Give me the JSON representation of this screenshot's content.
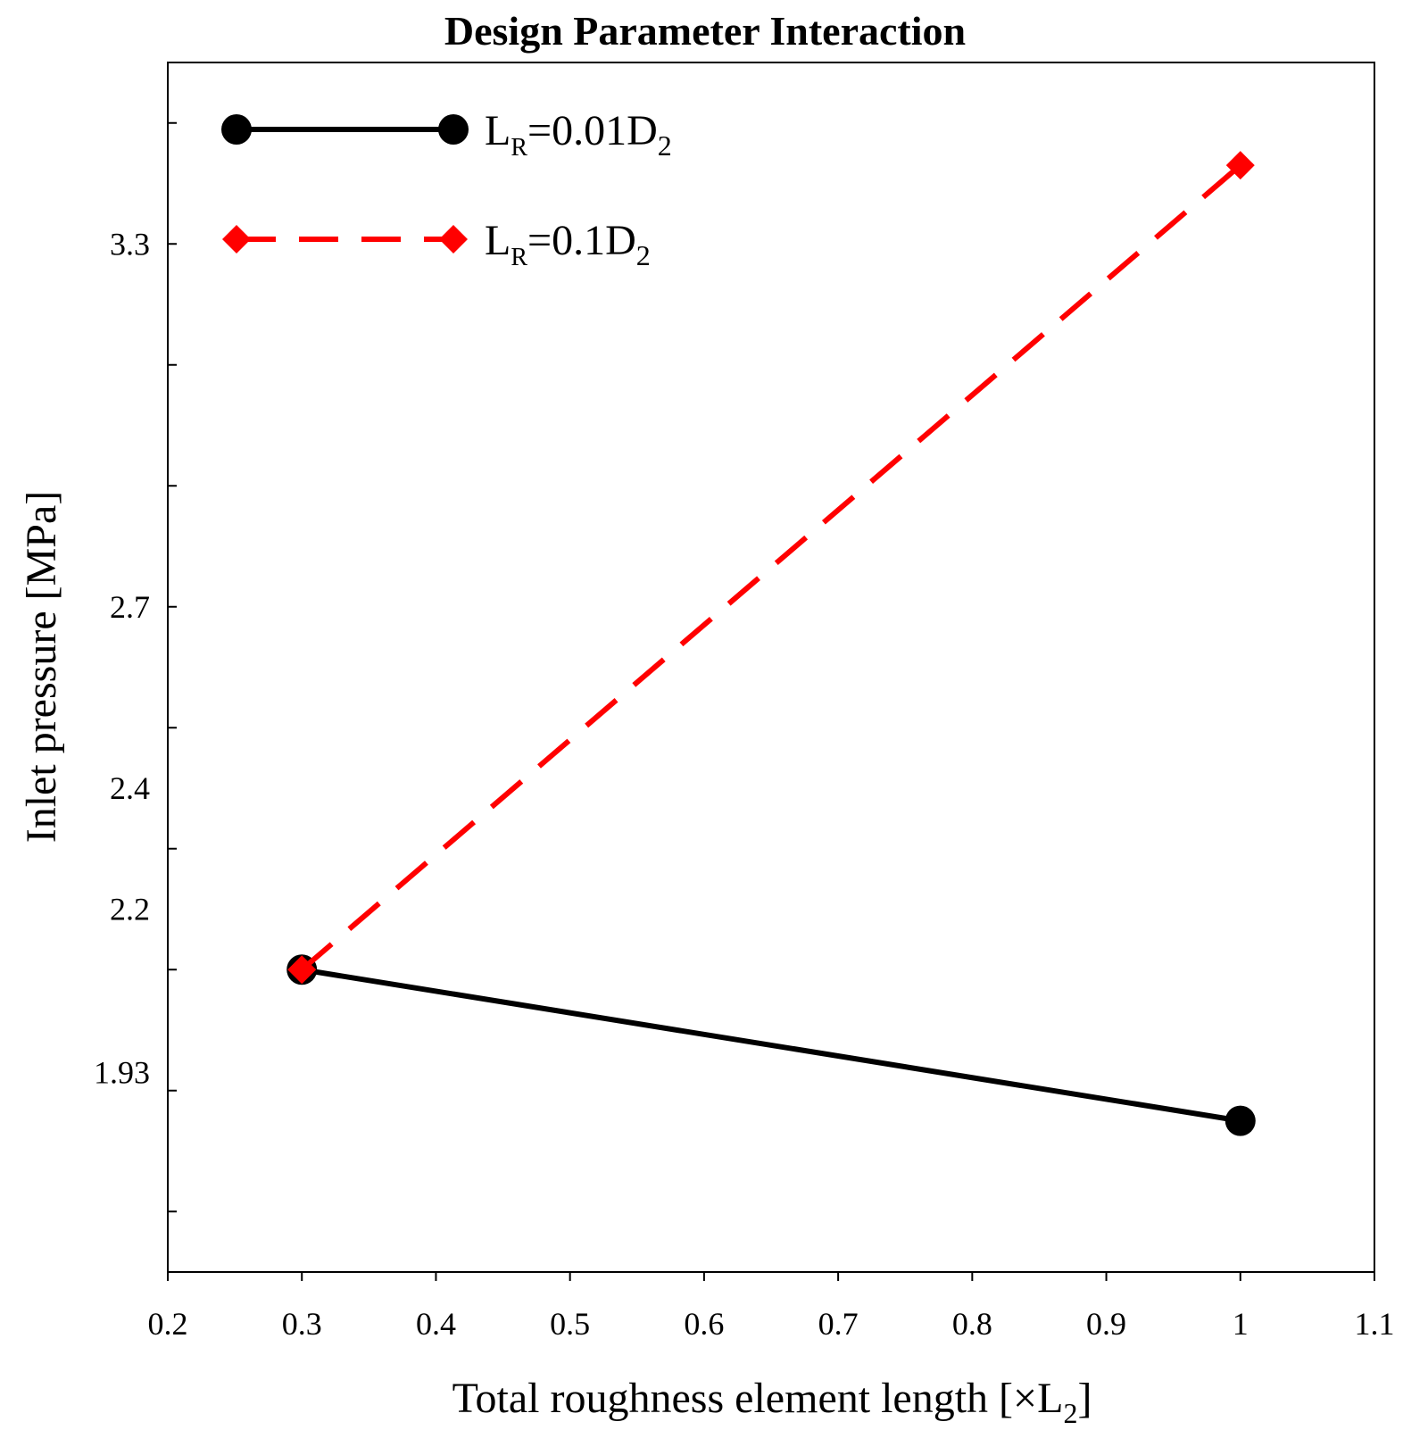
{
  "chart_data": {
    "type": "line",
    "title": "Design Parameter Interaction",
    "xlabel": "Total roughness element length [×L",
    "xlabel_sub": "2",
    "xlabel_suffix": "]",
    "ylabel": "Inlet pressure [MPa]",
    "xlim": [
      0.2,
      1.1
    ],
    "ylim": [
      1.6,
      3.6
    ],
    "x_ticks": [
      "0.2",
      "0.3",
      "0.4",
      "0.5",
      "0.6",
      "0.7",
      "0.8",
      "0.9",
      "1",
      "1.1"
    ],
    "x_tick_values": [
      0.2,
      0.3,
      0.4,
      0.5,
      0.6,
      0.7,
      0.8,
      0.9,
      1.0,
      1.1
    ],
    "y_tick_labels": [
      {
        "value": 3.3,
        "label": "3.3"
      },
      {
        "value": 2.7,
        "label": "2.7"
      },
      {
        "value": 2.4,
        "label": "2.4"
      },
      {
        "value": 2.2,
        "label": "2.2"
      },
      {
        "value": 1.93,
        "label": "1.93"
      }
    ],
    "y_minor_ticks": [
      3.5,
      3.3,
      3.1,
      2.9,
      2.7,
      2.5,
      2.3,
      2.1,
      1.9,
      1.7
    ],
    "grid": false,
    "legend_position": "top-left",
    "series": [
      {
        "name": "L_R=0.01D_2",
        "legend_main": "L",
        "legend_sub1": "R",
        "legend_mid": "=0.01D",
        "legend_sub2": "2",
        "color": "#000000",
        "line_style": "solid",
        "marker": "circle",
        "x": [
          0.3,
          1.0
        ],
        "y": [
          2.1,
          1.85
        ]
      },
      {
        "name": "L_R=0.1D_2",
        "legend_main": "L",
        "legend_sub1": "R",
        "legend_mid": "=0.1D",
        "legend_sub2": "2",
        "color": "#ff0000",
        "line_style": "dashed",
        "marker": "diamond",
        "x": [
          0.3,
          1.0
        ],
        "y": [
          2.1,
          3.43
        ]
      }
    ]
  }
}
